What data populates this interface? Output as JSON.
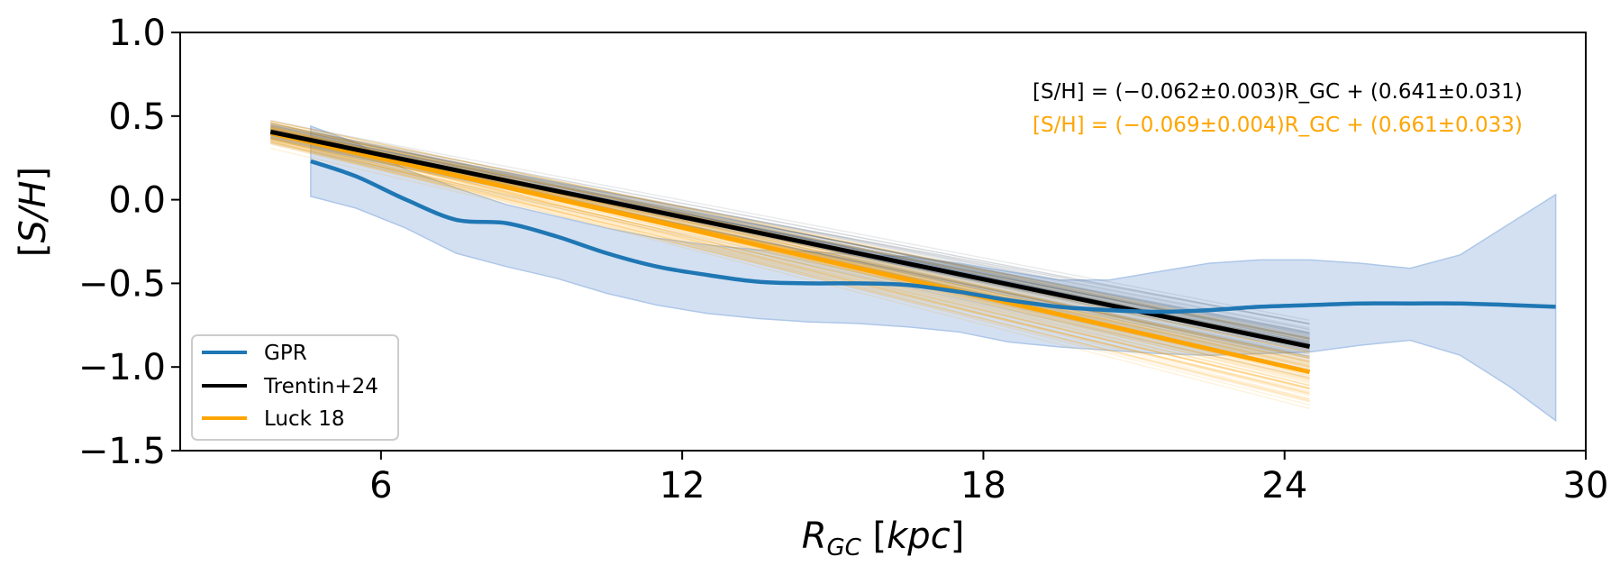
{
  "chart_data": {
    "type": "line",
    "xlabel": "R_GC [kpc]",
    "ylabel": "[S/H]",
    "xlim": [
      2,
      30
    ],
    "ylim": [
      -1.5,
      1.0
    ],
    "xticks": [
      6,
      12,
      18,
      24,
      30
    ],
    "yticks": [
      1.0,
      0.5,
      0.0,
      -0.5,
      -1.0,
      -1.5
    ],
    "ytick_labels": [
      "1.0",
      "0.5",
      "0.0",
      "−0.5",
      "−1.0",
      "−1.5"
    ],
    "grid": false,
    "legend_position": "lower-left",
    "series": [
      {
        "name": "GPR",
        "type": "line_with_band",
        "color": "#1f77b4",
        "band_color": "#aec7e8",
        "x": [
          4.6,
          5.5,
          6.5,
          7.5,
          8.5,
          9.5,
          10.5,
          11.5,
          12.5,
          13.5,
          14.5,
          15.5,
          16.5,
          17.5,
          18.5,
          19.5,
          20.5,
          21.5,
          22.5,
          23.5,
          24.5,
          25.5,
          26.5,
          27.5,
          28.5,
          29.4
        ],
        "y": [
          0.23,
          0.14,
          0.0,
          -0.12,
          -0.14,
          -0.22,
          -0.32,
          -0.4,
          -0.45,
          -0.49,
          -0.5,
          -0.5,
          -0.51,
          -0.55,
          -0.6,
          -0.64,
          -0.66,
          -0.67,
          -0.66,
          -0.64,
          -0.63,
          -0.62,
          -0.62,
          -0.62,
          -0.63,
          -0.64
        ],
        "lower": [
          0.02,
          -0.05,
          -0.17,
          -0.32,
          -0.4,
          -0.47,
          -0.56,
          -0.63,
          -0.68,
          -0.71,
          -0.73,
          -0.74,
          -0.76,
          -0.79,
          -0.85,
          -0.88,
          -0.9,
          -0.92,
          -0.93,
          -0.92,
          -0.91,
          -0.87,
          -0.84,
          -0.93,
          -1.12,
          -1.32
        ],
        "upper": [
          0.44,
          0.34,
          0.18,
          0.07,
          -0.03,
          -0.1,
          -0.17,
          -0.23,
          -0.27,
          -0.3,
          -0.31,
          -0.33,
          -0.34,
          -0.38,
          -0.43,
          -0.48,
          -0.48,
          -0.43,
          -0.38,
          -0.36,
          -0.36,
          -0.38,
          -0.41,
          -0.33,
          -0.14,
          0.03
        ]
      },
      {
        "name": "Trentin+24",
        "type": "linear_fit",
        "color": "#000000",
        "slope": -0.062,
        "slope_err": 0.003,
        "intercept": 0.641,
        "intercept_err": 0.031,
        "x_range": [
          3.8,
          24.5
        ]
      },
      {
        "name": "Luck 18",
        "type": "linear_fit",
        "color": "#ffa500",
        "slope": -0.069,
        "slope_err": 0.004,
        "intercept": 0.661,
        "intercept_err": 0.033,
        "x_range": [
          3.8,
          24.5
        ]
      }
    ],
    "annotations": [
      {
        "series": "Trentin+24",
        "color": "#000000",
        "text": "[S/H] = (−0.062±0.003)R_GC + (0.641±0.031)"
      },
      {
        "series": "Luck 18",
        "color": "#ffa500",
        "text": "[S/H] = (−0.069±0.004)R_GC + (0.661±0.033)"
      }
    ]
  }
}
